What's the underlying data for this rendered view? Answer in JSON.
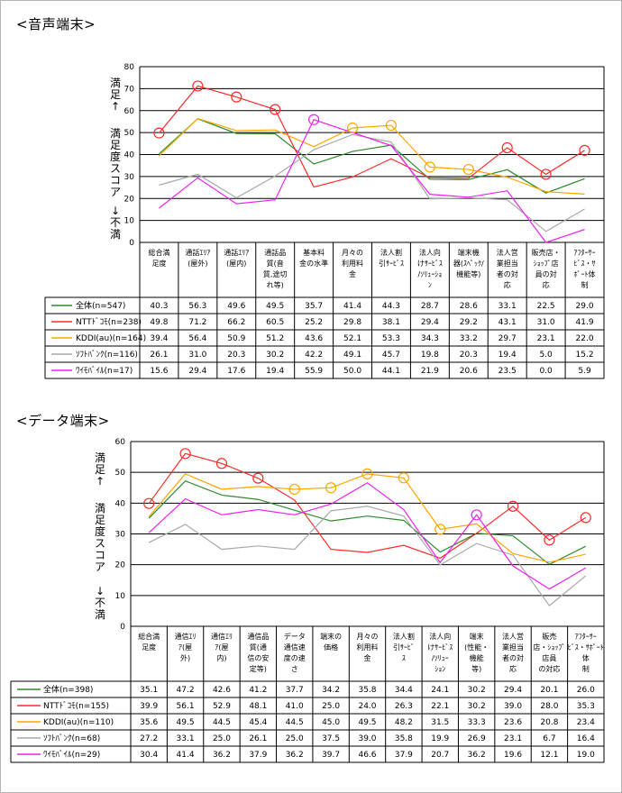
{
  "charts": [
    {
      "title": "<音声端末>",
      "ylabel_top": "満足↑",
      "ylabel_mid": "満足度スコア",
      "ylabel_bottom": "↓不満",
      "chart_data": {
        "type": "line",
        "ylim": [
          0,
          80
        ],
        "yticks": [
          0,
          10,
          20,
          30,
          40,
          50,
          60,
          70,
          80
        ],
        "categories": [
          [
            "総合満",
            "足度"
          ],
          [
            "通話ｴﾘｱ",
            "(屋外)"
          ],
          [
            "通話ｴﾘｱ",
            "(屋内)"
          ],
          [
            "通話品",
            "質(音",
            "質,途切",
            "れ等)"
          ],
          [
            "基本料",
            "金の水準"
          ],
          [
            "月々の",
            "利用料",
            "金"
          ],
          [
            "法人割",
            "引ｻｰﾋﾞｽ"
          ],
          [
            "法人向",
            "けｻｰﾋﾞｽ",
            "/ｿﾘｭｰｼｮ",
            "ﾝ"
          ],
          [
            "端末機",
            "器(ｽﾍﾟｯｸ/",
            "機能等)"
          ],
          [
            "法人営",
            "業担当",
            "者の対",
            "応"
          ],
          [
            "販売店・",
            "ｼｮｯﾌﾟ店",
            "員の対",
            "応"
          ],
          [
            "ｱﾌﾀｰｻｰ",
            "ﾋﾞｽ・ｻ",
            "ﾎﾟｰﾄ体",
            "制"
          ]
        ],
        "series": [
          {
            "name": "全体(n=547)",
            "color": "#2e8b2e",
            "values": [
              40.3,
              56.3,
              49.6,
              49.5,
              35.7,
              41.4,
              44.3,
              28.7,
              28.6,
              33.1,
              22.5,
              29.0
            ]
          },
          {
            "name": "NTTﾄﾞｺﾓ(n=238)",
            "color": "#ff2a2a",
            "values": [
              49.8,
              71.2,
              66.2,
              60.5,
              25.2,
              29.8,
              38.1,
              29.4,
              29.2,
              43.1,
              31.0,
              41.9
            ]
          },
          {
            "name": "KDDI(au)(n=164)",
            "color": "#ffa500",
            "values": [
              39.4,
              56.4,
              50.9,
              51.2,
              43.6,
              52.1,
              53.3,
              34.3,
              33.2,
              29.7,
              23.1,
              22.0
            ]
          },
          {
            "name": "ｿﾌﾄﾊﾞﾝｸ(n=116)",
            "color": "#a9a9a9",
            "values": [
              26.1,
              31.0,
              20.3,
              30.2,
              42.2,
              49.1,
              45.7,
              19.8,
              20.3,
              19.4,
              5.0,
              15.2
            ]
          },
          {
            "name": "ﾜｲﾓﾊﾞｲﾙ(n=17)",
            "color": "#ee22ee",
            "values": [
              15.6,
              29.4,
              17.6,
              19.4,
              55.9,
              50.0,
              44.1,
              21.9,
              20.6,
              23.5,
              0.0,
              5.9
            ]
          }
        ],
        "highlights": [
          {
            "series": 1,
            "index": 0
          },
          {
            "series": 1,
            "index": 1
          },
          {
            "series": 1,
            "index": 2
          },
          {
            "series": 1,
            "index": 3
          },
          {
            "series": 1,
            "index": 9
          },
          {
            "series": 1,
            "index": 10
          },
          {
            "series": 1,
            "index": 11
          },
          {
            "series": 2,
            "index": 5
          },
          {
            "series": 2,
            "index": 6
          },
          {
            "series": 2,
            "index": 7
          },
          {
            "series": 2,
            "index": 8
          },
          {
            "series": 4,
            "index": 4
          }
        ]
      }
    },
    {
      "title": "<データ端末>",
      "ylabel_top": "満足↑",
      "ylabel_mid": "満足度スコア",
      "ylabel_bottom": "↓不満",
      "chart_data": {
        "type": "line",
        "ylim": [
          0,
          60
        ],
        "yticks": [
          0,
          10,
          20,
          30,
          40,
          50,
          60
        ],
        "categories": [
          [
            "総合満",
            "足度"
          ],
          [
            "通信ｴﾘ",
            "ｱ(屋",
            "外)"
          ],
          [
            "通信ｴﾘ",
            "ｱ(屋",
            "内)"
          ],
          [
            "通信品",
            "質(通",
            "信の安",
            "定等)"
          ],
          [
            "データ",
            "通信速",
            "度の速",
            "さ"
          ],
          [
            "端末の",
            "価格"
          ],
          [
            "月々の",
            "利用料",
            "金"
          ],
          [
            "法人割",
            "引ｻｰﾋﾞ",
            "ｽ"
          ],
          [
            "法人向",
            "けｻｰﾋﾞｽ",
            "/ｿﾘｭｰ",
            "ｼｮﾝ"
          ],
          [
            "端末",
            "(性能・",
            "機能",
            "等)"
          ],
          [
            "法人営",
            "業担当",
            "者の対",
            "応"
          ],
          [
            "販売",
            "店・ｼｮｯﾌﾟ",
            "店員",
            "の対応"
          ],
          [
            "ｱﾌﾀｰｻｰ",
            "ﾋﾞｽ・ｻﾎﾟｰﾄ",
            "体",
            "制"
          ]
        ],
        "series": [
          {
            "name": "全体(n=398)",
            "color": "#2e8b2e",
            "values": [
              35.1,
              47.2,
              42.6,
              41.2,
              37.7,
              34.2,
              35.8,
              34.4,
              24.1,
              30.2,
              29.4,
              20.1,
              26.0
            ]
          },
          {
            "name": "NTTﾄﾞｺﾓ(n=155)",
            "color": "#ff2a2a",
            "values": [
              39.9,
              56.1,
              52.9,
              48.1,
              41.0,
              25.0,
              24.0,
              26.3,
              22.1,
              30.2,
              39.0,
              28.0,
              35.3
            ]
          },
          {
            "name": "KDDI(au)(n=110)",
            "color": "#ffa500",
            "values": [
              35.6,
              49.5,
              44.5,
              45.4,
              44.5,
              45.0,
              49.5,
              48.2,
              31.5,
              33.3,
              23.6,
              20.8,
              23.4
            ]
          },
          {
            "name": "ｿﾌﾄﾊﾞﾝｸ(n=68)",
            "color": "#a9a9a9",
            "values": [
              27.2,
              33.1,
              25.0,
              26.1,
              25.0,
              37.5,
              39.0,
              35.8,
              19.9,
              26.9,
              23.1,
              6.7,
              16.4
            ]
          },
          {
            "name": "ﾜｲﾓﾊﾞｲﾙ(n=29)",
            "color": "#ee22ee",
            "values": [
              30.4,
              41.4,
              36.2,
              37.9,
              36.2,
              39.7,
              46.6,
              37.9,
              20.7,
              36.2,
              19.6,
              12.1,
              19.0
            ]
          }
        ],
        "highlights": [
          {
            "series": 1,
            "index": 0
          },
          {
            "series": 1,
            "index": 1
          },
          {
            "series": 1,
            "index": 2
          },
          {
            "series": 1,
            "index": 3
          },
          {
            "series": 1,
            "index": 10
          },
          {
            "series": 1,
            "index": 11
          },
          {
            "series": 1,
            "index": 12
          },
          {
            "series": 2,
            "index": 4
          },
          {
            "series": 2,
            "index": 5
          },
          {
            "series": 2,
            "index": 6
          },
          {
            "series": 2,
            "index": 7
          },
          {
            "series": 2,
            "index": 8
          },
          {
            "series": 4,
            "index": 9
          }
        ]
      }
    }
  ]
}
